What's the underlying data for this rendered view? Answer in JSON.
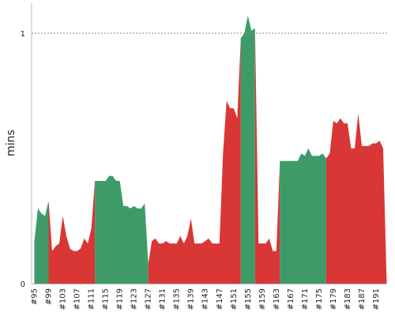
{
  "chart_data": {
    "type": "area",
    "ylabel": "mins",
    "yticks": [
      {
        "value": 0,
        "label": "0"
      },
      {
        "value": 1,
        "label": "1"
      }
    ],
    "ylim": [
      0,
      1.12
    ],
    "x_categories": [
      "#95",
      "#96",
      "#97",
      "#98",
      "#99",
      "#100",
      "#101",
      "#102",
      "#103",
      "#104",
      "#105",
      "#106",
      "#107",
      "#108",
      "#109",
      "#110",
      "#111",
      "#112",
      "#113",
      "#114",
      "#115",
      "#116",
      "#117",
      "#118",
      "#119",
      "#120",
      "#121",
      "#122",
      "#123",
      "#124",
      "#125",
      "#126",
      "#127",
      "#128",
      "#129",
      "#130",
      "#131",
      "#132",
      "#133",
      "#134",
      "#135",
      "#136",
      "#137",
      "#138",
      "#139",
      "#140",
      "#141",
      "#142",
      "#143",
      "#144",
      "#145",
      "#146",
      "#147",
      "#148",
      "#149",
      "#150",
      "#151",
      "#152",
      "#153",
      "#154",
      "#155",
      "#156",
      "#157",
      "#158",
      "#159",
      "#160",
      "#161",
      "#162",
      "#163",
      "#164",
      "#165",
      "#166",
      "#167",
      "#168",
      "#169",
      "#170",
      "#171",
      "#172",
      "#173",
      "#174",
      "#175",
      "#176",
      "#177",
      "#178",
      "#179",
      "#180",
      "#181",
      "#182",
      "#183",
      "#184",
      "#185",
      "#186",
      "#187",
      "#188",
      "#189",
      "#190",
      "#191",
      "#192",
      "#193",
      "#194"
    ],
    "xtick_labels": [
      "#95",
      "#99",
      "#103",
      "#107",
      "#111",
      "#115",
      "#119",
      "#123",
      "#127",
      "#131",
      "#135",
      "#139",
      "#143",
      "#147",
      "#151",
      "#155",
      "#159",
      "#163",
      "#167",
      "#171",
      "#175",
      "#179",
      "#183",
      "#187",
      "#191"
    ],
    "values": [
      0.17,
      0.3,
      0.28,
      0.27,
      0.33,
      0.13,
      0.15,
      0.16,
      0.27,
      0.19,
      0.14,
      0.13,
      0.13,
      0.14,
      0.18,
      0.16,
      0.22,
      0.41,
      0.41,
      0.41,
      0.41,
      0.43,
      0.43,
      0.41,
      0.41,
      0.31,
      0.31,
      0.3,
      0.31,
      0.3,
      0.3,
      0.32,
      0.08,
      0.17,
      0.18,
      0.16,
      0.16,
      0.17,
      0.16,
      0.16,
      0.16,
      0.19,
      0.16,
      0.19,
      0.26,
      0.16,
      0.16,
      0.16,
      0.17,
      0.18,
      0.16,
      0.16,
      0.16,
      0.52,
      0.73,
      0.7,
      0.7,
      0.66,
      0.98,
      1.0,
      1.07,
      1.01,
      1.02,
      0.16,
      0.16,
      0.16,
      0.18,
      0.13,
      0.13,
      0.49,
      0.49,
      0.49,
      0.49,
      0.49,
      0.49,
      0.52,
      0.51,
      0.54,
      0.51,
      0.51,
      0.51,
      0.52,
      0.5,
      0.52,
      0.65,
      0.64,
      0.66,
      0.64,
      0.64,
      0.54,
      0.54,
      0.68,
      0.55,
      0.55,
      0.55,
      0.56,
      0.56,
      0.57,
      0.54,
      0.0
    ],
    "segments": [
      {
        "start": 0,
        "end": 4,
        "status": "success"
      },
      {
        "start": 4,
        "end": 17,
        "status": "failure"
      },
      {
        "start": 17,
        "end": 32,
        "status": "success"
      },
      {
        "start": 32,
        "end": 58,
        "status": "failure"
      },
      {
        "start": 58,
        "end": 62,
        "status": "success"
      },
      {
        "start": 62,
        "end": 69,
        "status": "failure"
      },
      {
        "start": 69,
        "end": 82,
        "status": "success"
      },
      {
        "start": 82,
        "end": 99,
        "status": "failure"
      }
    ],
    "colors": {
      "success": "#3e9b68",
      "failure": "#d93636",
      "gridline": "#888888",
      "axis": "#bbbbbb"
    },
    "gridlines": [
      1
    ]
  }
}
